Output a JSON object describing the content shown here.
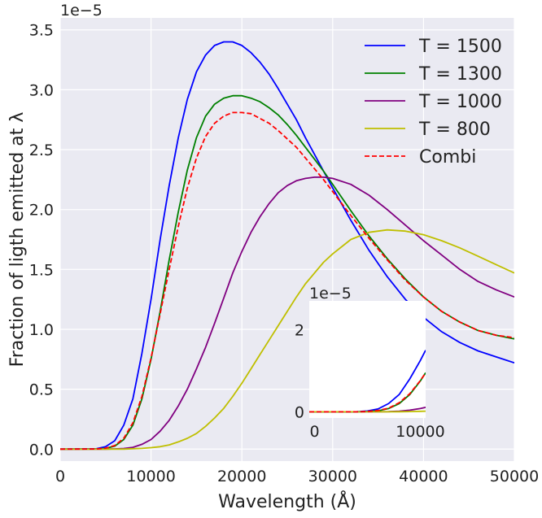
{
  "chart_data": [
    {
      "type": "line",
      "title": "",
      "xlabel": "Wavelength (Å)",
      "ylabel": "Fraction of ligth emitted at λ",
      "y_offset_label": "1e−5",
      "xlim": [
        0,
        50000
      ],
      "ylim": [
        -0.1,
        3.6
      ],
      "xticks": [
        0,
        10000,
        20000,
        30000,
        40000,
        50000
      ],
      "xtick_labels": [
        "0",
        "10000",
        "20000",
        "30000",
        "40000",
        "50000"
      ],
      "yticks": [
        0.0,
        0.5,
        1.0,
        1.5,
        2.0,
        2.5,
        3.0,
        3.5
      ],
      "ytick_labels": [
        "0.0",
        "0.5",
        "1.0",
        "1.5",
        "2.0",
        "2.5",
        "3.0",
        "3.5"
      ],
      "grid": true,
      "legend_position": "top-right",
      "x": [
        0,
        4000,
        5000,
        6000,
        7000,
        8000,
        9000,
        10000,
        11000,
        12000,
        13000,
        14000,
        15000,
        16000,
        17000,
        18000,
        19000,
        20000,
        21000,
        22000,
        23000,
        24000,
        25000,
        26000,
        27000,
        28000,
        29000,
        30000,
        32000,
        34000,
        36000,
        38000,
        40000,
        42000,
        44000,
        46000,
        48000,
        50000
      ],
      "series": [
        {
          "name": "T = 1500",
          "color": "#0000ff",
          "dash": "solid",
          "values": [
            0.0,
            0.003,
            0.02,
            0.07,
            0.2,
            0.42,
            0.8,
            1.25,
            1.75,
            2.2,
            2.6,
            2.92,
            3.15,
            3.29,
            3.37,
            3.4,
            3.4,
            3.37,
            3.31,
            3.23,
            3.13,
            3.01,
            2.88,
            2.75,
            2.6,
            2.46,
            2.32,
            2.18,
            1.91,
            1.66,
            1.44,
            1.25,
            1.1,
            0.98,
            0.89,
            0.82,
            0.77,
            0.72
          ]
        },
        {
          "name": "T = 1300",
          "color": "#008000",
          "dash": "solid",
          "values": [
            0.0,
            0.001,
            0.006,
            0.025,
            0.08,
            0.2,
            0.42,
            0.75,
            1.15,
            1.58,
            1.98,
            2.33,
            2.6,
            2.78,
            2.88,
            2.93,
            2.95,
            2.95,
            2.93,
            2.9,
            2.85,
            2.79,
            2.71,
            2.62,
            2.52,
            2.42,
            2.32,
            2.21,
            1.99,
            1.78,
            1.59,
            1.42,
            1.27,
            1.15,
            1.06,
            0.99,
            0.95,
            0.92
          ]
        },
        {
          "name": "T = 1000",
          "color": "#800080",
          "dash": "solid",
          "values": [
            0.0,
            0.0,
            0.0,
            0.002,
            0.005,
            0.015,
            0.04,
            0.08,
            0.15,
            0.24,
            0.36,
            0.5,
            0.67,
            0.85,
            1.05,
            1.26,
            1.47,
            1.65,
            1.81,
            1.94,
            2.05,
            2.14,
            2.2,
            2.24,
            2.26,
            2.27,
            2.27,
            2.26,
            2.21,
            2.12,
            2.0,
            1.87,
            1.74,
            1.62,
            1.5,
            1.4,
            1.33,
            1.27
          ]
        },
        {
          "name": "T = 800",
          "color": "#bfbf00",
          "dash": "solid",
          "values": [
            0.0,
            0.0,
            0.0,
            0.0,
            0.0,
            0.003,
            0.006,
            0.012,
            0.02,
            0.035,
            0.06,
            0.09,
            0.13,
            0.19,
            0.26,
            0.34,
            0.44,
            0.55,
            0.67,
            0.79,
            0.91,
            1.03,
            1.15,
            1.27,
            1.38,
            1.47,
            1.56,
            1.63,
            1.75,
            1.81,
            1.83,
            1.82,
            1.79,
            1.74,
            1.68,
            1.61,
            1.54,
            1.47
          ]
        },
        {
          "name": "Combi",
          "color": "#ff0000",
          "dash": "dashed",
          "values": [
            0.0,
            0.001,
            0.008,
            0.03,
            0.09,
            0.22,
            0.44,
            0.76,
            1.13,
            1.5,
            1.86,
            2.18,
            2.43,
            2.61,
            2.72,
            2.78,
            2.81,
            2.81,
            2.8,
            2.76,
            2.72,
            2.66,
            2.59,
            2.52,
            2.43,
            2.34,
            2.25,
            2.15,
            1.95,
            1.76,
            1.58,
            1.41,
            1.27,
            1.15,
            1.06,
            0.99,
            0.95,
            0.93
          ]
        }
      ]
    },
    {
      "type": "line",
      "title": "",
      "xlabel": "",
      "ylabel": "",
      "y_offset_label": "1e−5",
      "xlim": [
        -500,
        10500
      ],
      "ylim": [
        -0.15,
        2.7
      ],
      "xticks": [
        0,
        10000
      ],
      "xtick_labels": [
        "0",
        "10000"
      ],
      "yticks": [
        0,
        2
      ],
      "ytick_labels": [
        "0",
        "2"
      ],
      "grid": false,
      "x": [
        -500,
        0,
        4000,
        5000,
        6000,
        7000,
        8000,
        9000,
        10000,
        10500
      ],
      "series": [
        {
          "name": "T = 1500",
          "color": "#0000ff",
          "dash": "solid",
          "values": [
            0.0,
            0.0,
            0.003,
            0.02,
            0.07,
            0.2,
            0.42,
            0.8,
            1.25,
            1.5
          ]
        },
        {
          "name": "T = 1300",
          "color": "#008000",
          "dash": "solid",
          "values": [
            0.0,
            0.0,
            0.001,
            0.006,
            0.025,
            0.08,
            0.2,
            0.42,
            0.75,
            0.95
          ]
        },
        {
          "name": "T = 1000",
          "color": "#800080",
          "dash": "solid",
          "values": [
            0.0,
            0.0,
            0.0,
            0.0,
            0.002,
            0.005,
            0.015,
            0.04,
            0.08,
            0.11
          ]
        },
        {
          "name": "T = 800",
          "color": "#bfbf00",
          "dash": "solid",
          "values": [
            0.0,
            0.0,
            0.0,
            0.0,
            0.0,
            0.0,
            0.003,
            0.006,
            0.012,
            0.016
          ]
        },
        {
          "name": "Combi",
          "color": "#ff0000",
          "dash": "dashed",
          "values": [
            0.0,
            0.0,
            0.001,
            0.008,
            0.03,
            0.09,
            0.22,
            0.44,
            0.76,
            0.95
          ]
        }
      ]
    }
  ]
}
